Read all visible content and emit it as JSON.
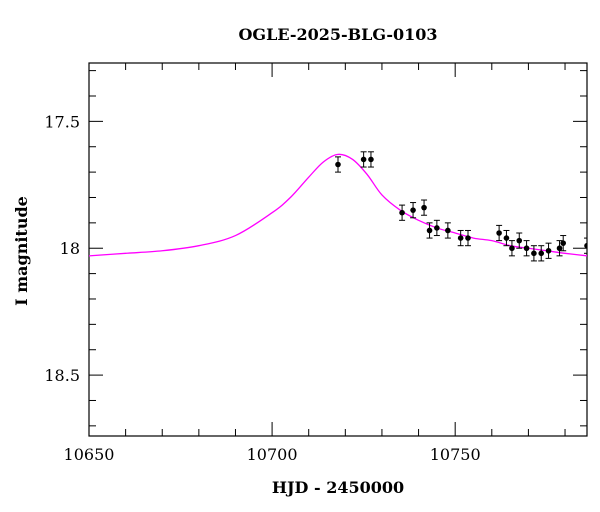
{
  "chart_data": {
    "type": "scatter",
    "title": "OGLE-2025-BLG-0103",
    "xlabel": "HJD - 2450000",
    "ylabel": "I magnitude",
    "xlim": [
      10650,
      10786
    ],
    "ylim": [
      18.74,
      17.27
    ],
    "y_inverted": true,
    "x_ticks": [
      10650,
      10700,
      10750
    ],
    "x_tick_labels": [
      "10650",
      "10700",
      "10750"
    ],
    "y_ticks": [
      17.5,
      18.0,
      18.5
    ],
    "y_tick_labels": [
      "17.5",
      "18",
      "18.5"
    ],
    "grid": false,
    "colors": {
      "model": "#ff00ff",
      "points": "#000000"
    },
    "series": [
      {
        "kind": "data",
        "points": [
          {
            "x": 10718.0,
            "y": 17.67,
            "err": 0.03
          },
          {
            "x": 10725.0,
            "y": 17.65,
            "err": 0.03
          },
          {
            "x": 10727.0,
            "y": 17.65,
            "err": 0.03
          },
          {
            "x": 10735.5,
            "y": 17.86,
            "err": 0.03
          },
          {
            "x": 10738.5,
            "y": 17.85,
            "err": 0.03
          },
          {
            "x": 10741.5,
            "y": 17.84,
            "err": 0.03
          },
          {
            "x": 10743.0,
            "y": 17.93,
            "err": 0.03
          },
          {
            "x": 10745.0,
            "y": 17.92,
            "err": 0.03
          },
          {
            "x": 10748.0,
            "y": 17.93,
            "err": 0.03
          },
          {
            "x": 10751.5,
            "y": 17.96,
            "err": 0.03
          },
          {
            "x": 10753.5,
            "y": 17.96,
            "err": 0.03
          },
          {
            "x": 10762.0,
            "y": 17.94,
            "err": 0.03
          },
          {
            "x": 10764.0,
            "y": 17.96,
            "err": 0.03
          },
          {
            "x": 10765.5,
            "y": 18.0,
            "err": 0.03
          },
          {
            "x": 10767.5,
            "y": 17.97,
            "err": 0.03
          },
          {
            "x": 10769.5,
            "y": 18.0,
            "err": 0.03
          },
          {
            "x": 10771.5,
            "y": 18.02,
            "err": 0.03
          },
          {
            "x": 10773.5,
            "y": 18.02,
            "err": 0.03
          },
          {
            "x": 10775.5,
            "y": 18.01,
            "err": 0.03
          },
          {
            "x": 10778.5,
            "y": 18.0,
            "err": 0.03
          },
          {
            "x": 10779.5,
            "y": 17.98,
            "err": 0.03
          },
          {
            "x": 10786.0,
            "y": 17.99,
            "err": 0.03
          }
        ]
      },
      {
        "kind": "model",
        "x": [
          10650,
          10660,
          10670,
          10680,
          10690,
          10700,
          10705,
          10710,
          10714,
          10718,
          10722,
          10726,
          10730,
          10735,
          10740,
          10745,
          10750,
          10755,
          10760,
          10765,
          10770,
          10775,
          10780,
          10786
        ],
        "y": [
          18.03,
          18.02,
          18.01,
          17.99,
          17.95,
          17.86,
          17.8,
          17.72,
          17.66,
          17.63,
          17.65,
          17.71,
          17.79,
          17.85,
          17.89,
          17.92,
          17.94,
          17.96,
          17.97,
          17.99,
          18.0,
          18.01,
          18.02,
          18.03
        ]
      }
    ]
  }
}
